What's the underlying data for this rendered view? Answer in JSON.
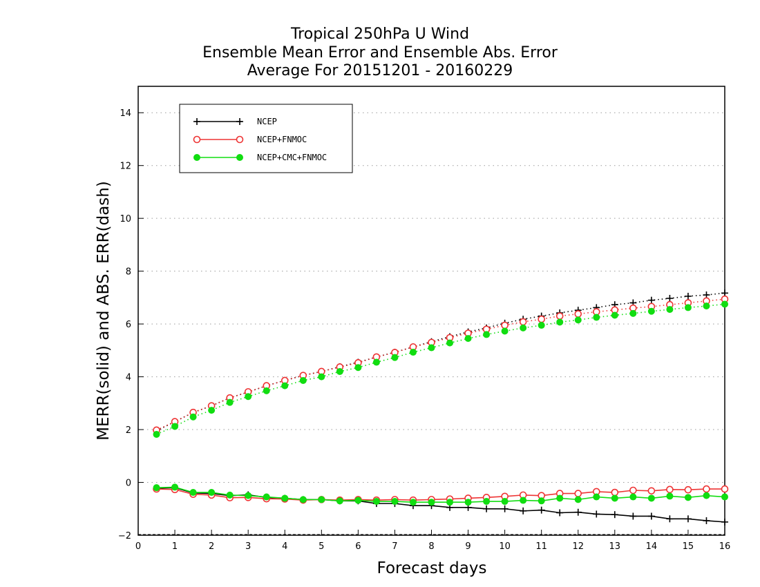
{
  "chart_data": {
    "type": "line",
    "title_lines": [
      "Tropical 250hPa U Wind",
      "Ensemble Mean Error and Ensemble Abs. Error",
      "Average For 20151201 - 20160229"
    ],
    "xlabel": "Forecast days",
    "ylabel": "MERR(solid) and ABS. ERR(dash)",
    "xlim": [
      0,
      16
    ],
    "ylim": [
      -2,
      15
    ],
    "xticks": [
      0,
      1,
      2,
      3,
      4,
      5,
      6,
      7,
      8,
      9,
      10,
      11,
      12,
      13,
      14,
      15,
      16
    ],
    "yticks": [
      -2,
      0,
      2,
      4,
      6,
      8,
      10,
      12,
      14
    ],
    "ytick_labels": [
      "−2",
      "0",
      "2",
      "4",
      "6",
      "8",
      "10",
      "12",
      "14"
    ],
    "grid": "horizontal-dotted",
    "legend_position": "top-left",
    "x": [
      0.5,
      1,
      1.5,
      2,
      2.5,
      3,
      3.5,
      4,
      4.5,
      5,
      5.5,
      6,
      6.5,
      7,
      7.5,
      8,
      8.5,
      9,
      9.5,
      10,
      10.5,
      11,
      11.5,
      12,
      12.5,
      13,
      13.5,
      14,
      14.5,
      15,
      15.5,
      16
    ],
    "series": [
      {
        "name": "NCEP",
        "color": "#000000",
        "marker": "plus",
        "merr": [
          -0.22,
          -0.2,
          -0.4,
          -0.42,
          -0.5,
          -0.47,
          -0.57,
          -0.6,
          -0.65,
          -0.65,
          -0.7,
          -0.7,
          -0.8,
          -0.8,
          -0.88,
          -0.88,
          -0.95,
          -0.95,
          -1.0,
          -1.0,
          -1.08,
          -1.05,
          -1.15,
          -1.13,
          -1.2,
          -1.22,
          -1.28,
          -1.28,
          -1.38,
          -1.38,
          -1.45,
          -1.5
        ],
        "abserr": [
          1.95,
          2.3,
          2.65,
          2.9,
          3.2,
          3.42,
          3.66,
          3.86,
          4.05,
          4.2,
          4.38,
          4.55,
          4.75,
          4.93,
          5.13,
          5.33,
          5.52,
          5.7,
          5.85,
          6.03,
          6.18,
          6.3,
          6.42,
          6.52,
          6.62,
          6.73,
          6.8,
          6.9,
          6.97,
          7.05,
          7.1,
          7.17
        ]
      },
      {
        "name": "NCEP+FNMOC",
        "color": "#ee3333",
        "marker": "open-circle",
        "merr": [
          -0.25,
          -0.27,
          -0.45,
          -0.48,
          -0.58,
          -0.57,
          -0.62,
          -0.63,
          -0.67,
          -0.65,
          -0.67,
          -0.65,
          -0.67,
          -0.65,
          -0.67,
          -0.65,
          -0.63,
          -0.6,
          -0.57,
          -0.53,
          -0.48,
          -0.5,
          -0.42,
          -0.42,
          -0.35,
          -0.38,
          -0.3,
          -0.32,
          -0.27,
          -0.28,
          -0.25,
          -0.25
        ],
        "abserr": [
          1.98,
          2.3,
          2.65,
          2.9,
          3.2,
          3.43,
          3.66,
          3.86,
          4.05,
          4.2,
          4.37,
          4.53,
          4.75,
          4.92,
          5.13,
          5.3,
          5.48,
          5.65,
          5.8,
          5.95,
          6.08,
          6.18,
          6.3,
          6.38,
          6.46,
          6.53,
          6.6,
          6.66,
          6.73,
          6.8,
          6.87,
          6.94
        ]
      },
      {
        "name": "NCEP+CMC+FNMOC",
        "color": "#11dd11",
        "marker": "filled-circle",
        "merr": [
          -0.2,
          -0.18,
          -0.38,
          -0.38,
          -0.48,
          -0.5,
          -0.55,
          -0.6,
          -0.65,
          -0.65,
          -0.7,
          -0.68,
          -0.72,
          -0.72,
          -0.75,
          -0.75,
          -0.75,
          -0.75,
          -0.72,
          -0.72,
          -0.68,
          -0.7,
          -0.6,
          -0.65,
          -0.55,
          -0.6,
          -0.55,
          -0.6,
          -0.52,
          -0.57,
          -0.5,
          -0.55
        ],
        "abserr": [
          1.82,
          2.12,
          2.48,
          2.73,
          3.03,
          3.25,
          3.47,
          3.66,
          3.86,
          4.0,
          4.2,
          4.35,
          4.55,
          4.73,
          4.93,
          5.1,
          5.28,
          5.45,
          5.6,
          5.73,
          5.85,
          5.95,
          6.07,
          6.15,
          6.25,
          6.33,
          6.4,
          6.48,
          6.55,
          6.62,
          6.68,
          6.75
        ]
      }
    ]
  }
}
